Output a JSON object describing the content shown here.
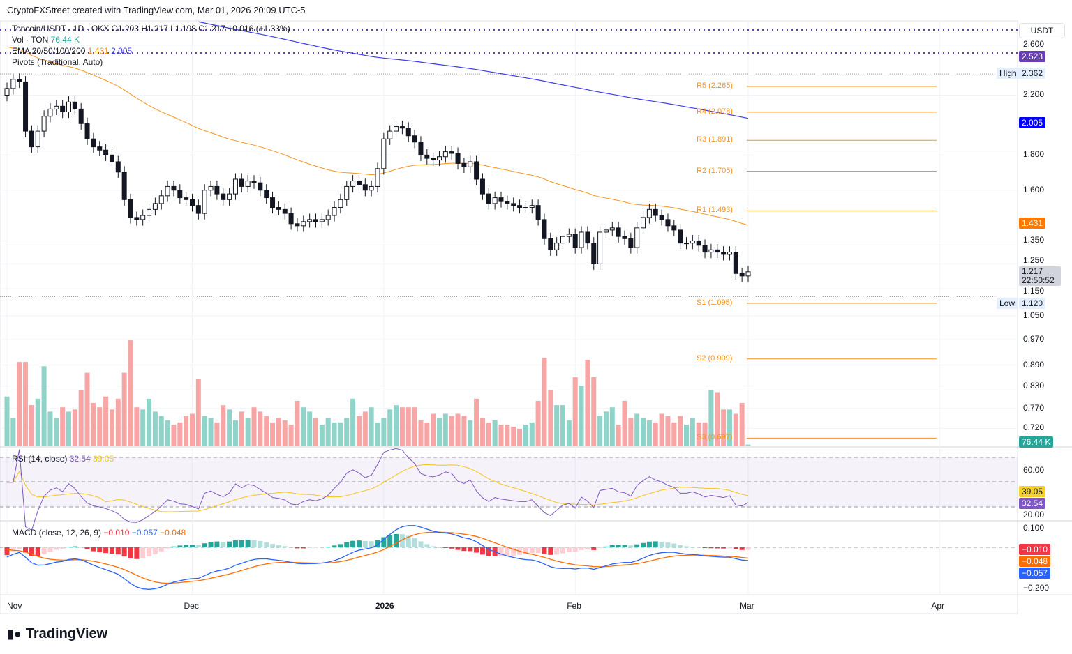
{
  "header": {
    "credit": "CryptoFXStreet created with TradingView.com, Mar 01, 2026 20:09 UTC-5"
  },
  "legend": {
    "symbol": "Toncoin/USDT · 1D · OKX",
    "ohlc": "O1.203 H1.217 L1.198 C1.217 +0.016 (+1.33%)",
    "vol_label": "Vol · TON",
    "vol_value": "76.44 K",
    "ema_label": "EMA 20/50/100/200",
    "ema50": "1.431",
    "ema200": "2.005",
    "pivots": "Pivots (Traditional, Auto)",
    "rsi_label": "RSI (14, close)",
    "rsi_value": "32.54",
    "rsi_ma": "39.05",
    "macd_label": "MACD (close, 12, 26, 9)",
    "macd_hist": "−0.010",
    "macd_line": "−0.057",
    "macd_signal": "−0.048"
  },
  "axis": {
    "currency": "USDT",
    "price_ticks": [
      "2.600",
      "2.200",
      "1.800",
      "1.600",
      "1.350",
      "1.250",
      "1.150",
      "1.050",
      "0.970",
      "0.890",
      "0.830",
      "0.770",
      "0.720"
    ],
    "rsi_ticks": [
      "60.00",
      "20.00"
    ],
    "macd_ticks": [
      "0.100",
      "−0.200"
    ],
    "time_ticks": [
      "Nov",
      "Dec",
      "2026",
      "Feb",
      "Mar",
      "Apr"
    ],
    "tags": {
      "pivot_top": "2.523",
      "high_label": "High",
      "high": "2.362",
      "ema200": "2.005",
      "ema50": "1.431",
      "last": "1.217",
      "countdown": "22:50:52",
      "low_label": "Low",
      "low": "1.120",
      "volume": "76.44 K",
      "rsi_ma": "39.05",
      "rsi": "32.54",
      "macd_hist": "−0.010",
      "macd_signal": "−0.048",
      "macd_line": "−0.057"
    }
  },
  "pivots": [
    {
      "label": "R5 (2.265)",
      "value": 2.265
    },
    {
      "label": "R4 (2.078)",
      "value": 2.078
    },
    {
      "label": "R3 (1.891)",
      "value": 1.891
    },
    {
      "label": "R2 (1.705)",
      "value": 1.705
    },
    {
      "label": "R1 (1.493)",
      "value": 1.493
    },
    {
      "label": "S1 (1.095)",
      "value": 1.095
    },
    {
      "label": "S2 (0.909)",
      "value": 0.909
    },
    {
      "label": "S3 (0.697)",
      "value": 0.697
    }
  ],
  "colors": {
    "ema50": "#f7931a",
    "ema200": "#3c3cf0",
    "vol_up": "#8fd3c9",
    "vol_down": "#f7a5a5",
    "rsi": "#7e57c2",
    "rsi_ma": "#f5c518",
    "macd": "#2962ff",
    "signal": "#ff6d00"
  },
  "chart_data": {
    "type": "candlestick",
    "x_start": "Nov 1",
    "closes": [
      2.25,
      2.32,
      2.3,
      1.95,
      1.85,
      1.95,
      2.05,
      2.1,
      2.12,
      2.08,
      2.15,
      2.1,
      2.0,
      1.9,
      1.85,
      1.83,
      1.8,
      1.76,
      1.7,
      1.55,
      1.46,
      1.45,
      1.47,
      1.5,
      1.53,
      1.57,
      1.62,
      1.6,
      1.56,
      1.55,
      1.52,
      1.48,
      1.6,
      1.62,
      1.58,
      1.55,
      1.58,
      1.66,
      1.62,
      1.65,
      1.64,
      1.6,
      1.56,
      1.51,
      1.5,
      1.48,
      1.43,
      1.42,
      1.44,
      1.45,
      1.44,
      1.45,
      1.47,
      1.51,
      1.55,
      1.62,
      1.65,
      1.63,
      1.6,
      1.62,
      1.72,
      1.9,
      1.95,
      1.98,
      1.97,
      1.92,
      1.88,
      1.8,
      1.78,
      1.77,
      1.79,
      1.82,
      1.81,
      1.75,
      1.73,
      1.76,
      1.66,
      1.58,
      1.53,
      1.56,
      1.54,
      1.53,
      1.52,
      1.51,
      1.51,
      1.52,
      1.45,
      1.36,
      1.31,
      1.34,
      1.37,
      1.38,
      1.32,
      1.39,
      1.34,
      1.25,
      1.39,
      1.4,
      1.41,
      1.37,
      1.36,
      1.32,
      1.41,
      1.46,
      1.5,
      1.47,
      1.45,
      1.42,
      1.4,
      1.34,
      1.34,
      1.35,
      1.33,
      1.3,
      1.31,
      1.3,
      1.29,
      1.3,
      1.21,
      1.2,
      1.217
    ],
    "volumes_k": [
      2300,
      1300,
      3900,
      3900,
      1900,
      2200,
      3700,
      1600,
      1300,
      1800,
      1600,
      1700,
      2600,
      3400,
      2000,
      1800,
      2300,
      1700,
      2200,
      3400,
      4900,
      1800,
      1700,
      2200,
      1600,
      1400,
      1200,
      1000,
      1100,
      1400,
      1500,
      3100,
      1400,
      1300,
      1100,
      1900,
      1700,
      1200,
      1600,
      1300,
      1800,
      1600,
      1400,
      1100,
      1300,
      1200,
      1000,
      2100,
      1800,
      1600,
      1300,
      1000,
      1300,
      1100,
      1100,
      1300,
      2200,
      1400,
      1600,
      1800,
      1100,
      1300,
      1700,
      1900,
      1800,
      1800,
      1800,
      1200,
      1100,
      1500,
      1300,
      1500,
      1400,
      1500,
      1400,
      1200,
      2200,
      1300,
      1100,
      1200,
      1000,
      1000,
      900,
      800,
      1000,
      1100,
      2100,
      4100,
      2600,
      1900,
      1900,
      1200,
      3200,
      2800,
      4000,
      3200,
      1400,
      1600,
      1800,
      1000,
      2100,
      1300,
      1500,
      1300,
      1200,
      1100,
      1500,
      1400,
      1100,
      1400,
      1000,
      1300,
      1100,
      1100,
      2600,
      2500,
      1700,
      1700,
      1500,
      2000,
      76
    ]
  },
  "price_range": [
    0.69,
    2.62
  ]
}
